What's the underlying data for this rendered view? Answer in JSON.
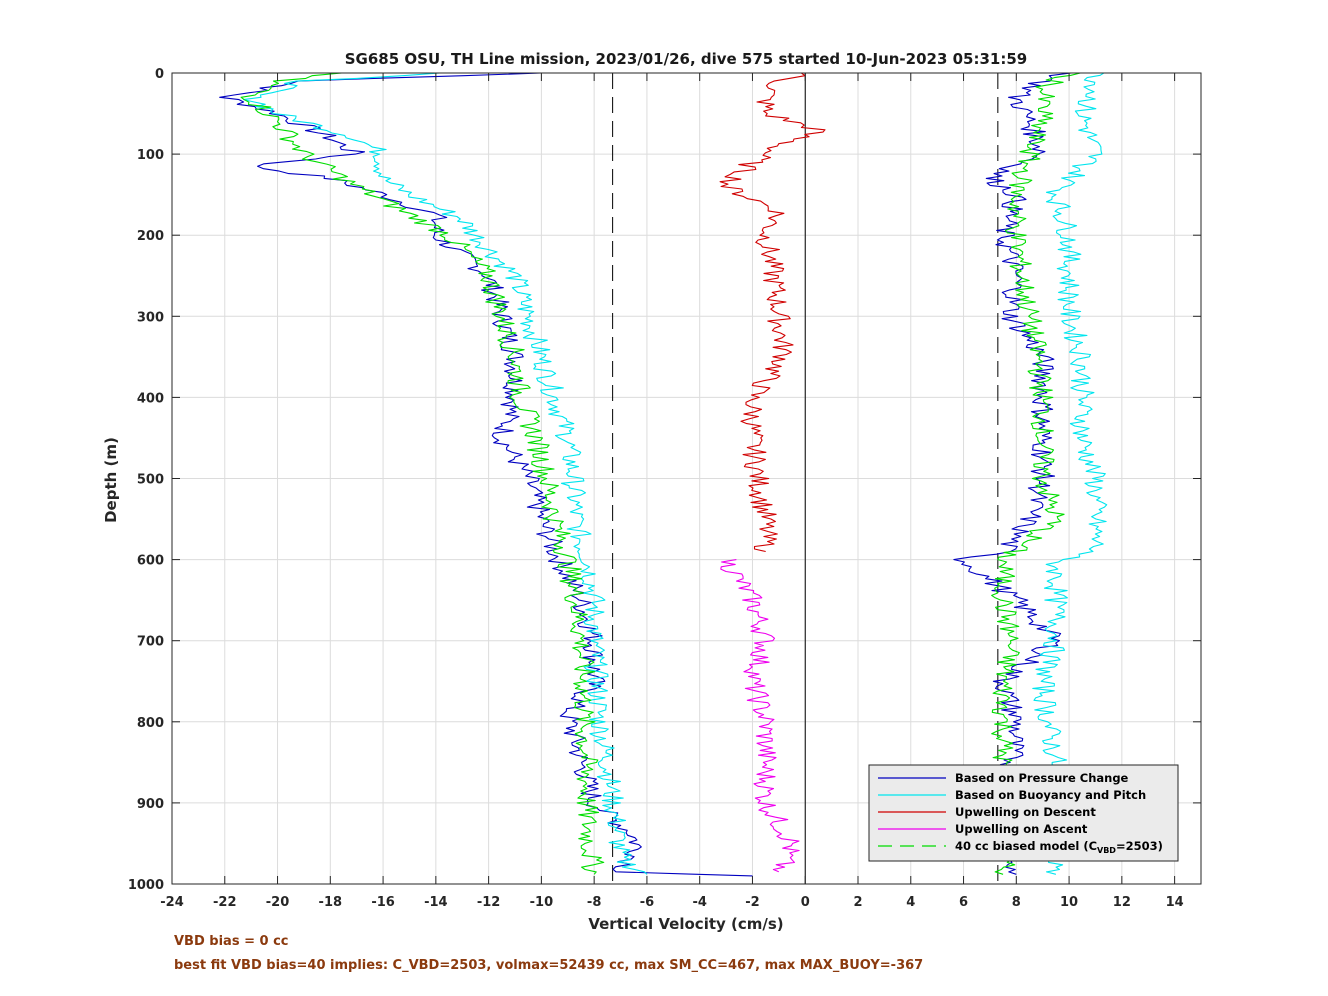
{
  "colors": {
    "pressure": "#0000c0",
    "buoyancy": "#00e5ee",
    "descent": "#d00000",
    "ascent": "#ee00ee",
    "biased": "#00dd00",
    "notes": "#8b3a0e"
  },
  "notes": {
    "line1": "VBD bias = 0 cc",
    "line2": "best fit VBD bias=40 implies: C_VBD=2503, volmax=52439 cc, max SM_CC=467, max MAX_BUOY=-367"
  },
  "chart_data": {
    "type": "line",
    "title": "SG685 OSU, TH Line mission, 2023/01/26, dive 575 started 10-Jun-2023 05:31:59",
    "xlabel": "Vertical Velocity (cm/s)",
    "ylabel": "Depth (m)",
    "xlim": [
      -24,
      15
    ],
    "ylim": [
      0,
      1000
    ],
    "y_reversed": true,
    "grid": true,
    "x_ticks": [
      "-24",
      "-22",
      "-20",
      "-18",
      "-16",
      "-14",
      "-12",
      "-10",
      "-8",
      "-6",
      "-4",
      "-2",
      "0",
      "2",
      "4",
      "6",
      "8",
      "10",
      "12",
      "14"
    ],
    "y_ticks": [
      "0",
      "100",
      "200",
      "300",
      "400",
      "500",
      "600",
      "700",
      "800",
      "900",
      "1000"
    ],
    "x_tick_values": [
      -24,
      -22,
      -20,
      -18,
      -16,
      -14,
      -12,
      -10,
      -8,
      -6,
      -4,
      -2,
      0,
      2,
      4,
      6,
      8,
      10,
      12,
      14
    ],
    "y_tick_values": [
      0,
      100,
      200,
      300,
      400,
      500,
      600,
      700,
      800,
      900,
      1000
    ],
    "reference_lines": [
      {
        "orientation": "vertical",
        "x": -7.3,
        "style": "dashed"
      },
      {
        "orientation": "vertical",
        "x": 7.3,
        "style": "dashed"
      },
      {
        "orientation": "vertical",
        "x": 0,
        "style": "solid"
      }
    ],
    "legend": {
      "placement": "bottom-right",
      "entries": [
        {
          "label": "Based on Pressure Change",
          "color": "#0000c0",
          "style": "solid"
        },
        {
          "label": "Based on Buoyancy and Pitch",
          "color": "#00e5ee",
          "style": "solid"
        },
        {
          "label": "Upwelling on Descent",
          "color": "#d00000",
          "style": "solid"
        },
        {
          "label": "Upwelling on Ascent",
          "color": "#ee00ee",
          "style": "solid"
        },
        {
          "label": "40 cc biased model (C",
          "sub": "VBD",
          "suffix": "=2503)",
          "color": "#00dd00",
          "style": "dashed"
        }
      ]
    },
    "series": [
      {
        "name": "Based on Pressure Change",
        "color": "#0000c0",
        "depth": [
          0,
          10,
          30,
          50,
          80,
          100,
          115,
          130,
          150,
          175,
          200,
          250,
          300,
          350,
          400,
          450,
          500,
          550,
          590,
          650,
          700,
          750,
          790,
          850,
          900,
          940,
          960,
          985,
          990
        ],
        "x": [
          -10,
          -19,
          -22,
          -20,
          -18,
          -17,
          -21,
          -18,
          -16,
          -14,
          -14,
          -12,
          -11.5,
          -11,
          -11,
          -11.5,
          -10.5,
          -10,
          -9.5,
          -8.5,
          -8,
          -8,
          -9,
          -8.5,
          -8,
          -6.5,
          -6.3,
          -7,
          -2
        ]
      },
      {
        "name": "Based on Buoyancy and Pitch",
        "color": "#00e5ee",
        "depth": [
          0,
          10,
          30,
          50,
          80,
          100,
          130,
          150,
          180,
          200,
          250,
          300,
          350,
          400,
          450,
          500,
          550,
          590,
          600,
          650,
          700,
          750,
          800,
          850,
          900,
          940,
          970,
          988
        ],
        "x": [
          -14,
          -19,
          -21,
          -20,
          -17,
          -16,
          -16,
          -15,
          -13,
          -12.5,
          -11,
          -10.5,
          -10,
          -9.5,
          -9,
          -8.8,
          -8.7,
          -8.4,
          -8.2,
          -8,
          -8,
          -7.9,
          -7.8,
          -7.5,
          -7.3,
          -7.1,
          -7,
          -6
        ]
      },
      {
        "name": "Upwelling on Descent",
        "color": "#d00000",
        "depth": [
          0,
          10,
          30,
          50,
          70,
          90,
          110,
          140,
          170,
          200,
          250,
          300,
          350,
          400,
          450,
          500,
          550,
          590
        ],
        "x": [
          0,
          -1,
          -1.5,
          -1.5,
          0.5,
          -1,
          -2,
          -3,
          -1,
          -1.5,
          -1.2,
          -1,
          -0.8,
          -2,
          -2,
          -1.8,
          -1.5,
          -1.5
        ]
      },
      {
        "name": "Upwelling on Ascent",
        "color": "#ee00ee",
        "depth": [
          600,
          650,
          700,
          750,
          800,
          850,
          900,
          950,
          985
        ],
        "x": [
          -3,
          -2,
          -1.5,
          -2,
          -1.5,
          -1.5,
          -1.5,
          -0.5,
          -1
        ]
      },
      {
        "name": "40 cc biased model (C_VBD=2503)",
        "color": "#00dd00",
        "depth": [
          0,
          10,
          30,
          60,
          100,
          140,
          200,
          250,
          300,
          350,
          400,
          450,
          500,
          550,
          600,
          650,
          700,
          750,
          800,
          850,
          900,
          950,
          988
        ],
        "x": [
          -18,
          -20,
          -21,
          -20,
          -19,
          -17,
          -13.5,
          -12,
          -11.5,
          -11,
          -10.8,
          -10.2,
          -9.8,
          -9.5,
          -9,
          -8.7,
          -8.5,
          -8.4,
          -8.4,
          -8.3,
          -8.3,
          -8.2,
          -8
        ]
      },
      {
        "name": "Based on Pressure Change (ascent)",
        "color": "#0000c0",
        "depth": [
          0,
          10,
          30,
          60,
          100,
          130,
          150,
          200,
          250,
          300,
          350,
          400,
          450,
          500,
          550,
          590,
          600,
          650,
          700,
          750,
          800,
          850,
          900,
          950,
          988
        ],
        "x": [
          10,
          9,
          8,
          8.5,
          9,
          7,
          8,
          7.5,
          8,
          7.8,
          9,
          9,
          9,
          9,
          8.5,
          7.5,
          6,
          8,
          9.5,
          7.5,
          8,
          7.8,
          8,
          8,
          8
        ]
      },
      {
        "name": "Based on Buoyancy and Pitch (ascent)",
        "color": "#00e5ee",
        "depth": [
          0,
          20,
          50,
          100,
          150,
          200,
          250,
          300,
          350,
          400,
          450,
          500,
          550,
          590,
          600,
          650,
          700,
          750,
          800,
          850,
          900,
          950,
          988
        ],
        "x": [
          11,
          11,
          10.5,
          11,
          9.5,
          10,
          10,
          10,
          10.5,
          10.5,
          10.5,
          11,
          11,
          11,
          9.5,
          9.5,
          9.5,
          9,
          9.2,
          9.5,
          9.5,
          9.5,
          9.5
        ]
      },
      {
        "name": "40 cc biased model (ascent)",
        "color": "#00dd00",
        "depth": [
          0,
          20,
          50,
          100,
          150,
          200,
          250,
          300,
          350,
          400,
          450,
          500,
          550,
          600,
          650,
          700,
          750,
          800,
          850,
          900,
          950,
          988
        ],
        "x": [
          10,
          9,
          9,
          8.5,
          8,
          8,
          8.2,
          8.5,
          8.8,
          9,
          9,
          9,
          9.5,
          7.5,
          7.5,
          7.8,
          7.5,
          7.5,
          7.5,
          7.5,
          7.5,
          7.5
        ]
      }
    ]
  }
}
